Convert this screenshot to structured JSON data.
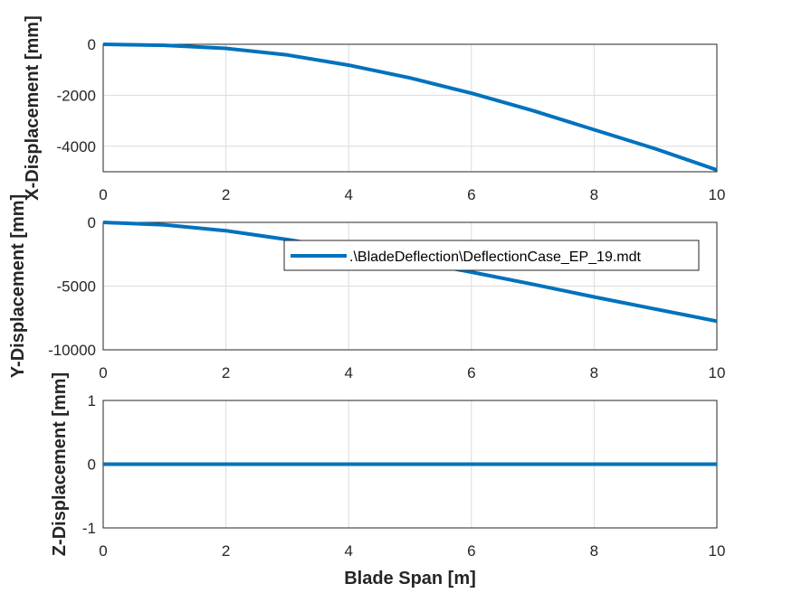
{
  "colors": {
    "series": "#0072BD",
    "grid": "#dcdcdc",
    "axis": "#262626",
    "background": "#ffffff"
  },
  "legend": {
    "label": ".\\BladeDeflection\\DeflectionCase_EP_19.mdt",
    "placement": "inside-top-right of middle axes"
  },
  "chart_data": [
    {
      "type": "line",
      "panel": "x-displacement",
      "ylabel": "X-Displacement [mm]",
      "xlabel": "",
      "xlim": [
        0,
        10
      ],
      "ylim": [
        -5000,
        0
      ],
      "x_ticks": [
        "0",
        "2",
        "4",
        "6",
        "8",
        "10"
      ],
      "y_ticks": [
        "0",
        "-2000",
        "-4000"
      ],
      "y_tick_values": [
        0,
        -2000,
        -4000
      ],
      "grid": true,
      "series": [
        {
          "name": ".\\BladeDeflection\\DeflectionCase_EP_19.mdt",
          "x": [
            0,
            1,
            2,
            3,
            4,
            5,
            6,
            7,
            8,
            9,
            10
          ],
          "y": [
            0,
            -40,
            -160,
            -420,
            -820,
            -1320,
            -1920,
            -2600,
            -3350,
            -4100,
            -4930
          ]
        }
      ]
    },
    {
      "type": "line",
      "panel": "y-displacement",
      "ylabel": "Y-Displacement [mm]",
      "xlabel": "",
      "xlim": [
        0,
        10
      ],
      "ylim": [
        -10000,
        0
      ],
      "x_ticks": [
        "0",
        "2",
        "4",
        "6",
        "8",
        "10"
      ],
      "y_ticks": [
        "0",
        "-5000",
        "-10000"
      ],
      "y_tick_values": [
        0,
        -5000,
        -10000
      ],
      "grid": true,
      "series": [
        {
          "name": ".\\BladeDeflection\\DeflectionCase_EP_19.mdt",
          "x": [
            0,
            1,
            2,
            3,
            4,
            5,
            6,
            7,
            8,
            9,
            10
          ],
          "y": [
            0,
            -200,
            -650,
            -1350,
            -2150,
            -3000,
            -3900,
            -4850,
            -5850,
            -6800,
            -7750
          ]
        }
      ]
    },
    {
      "type": "line",
      "panel": "z-displacement",
      "ylabel": "Z-Displacement [mm]",
      "xlabel": "Blade Span [m]",
      "xlim": [
        0,
        10
      ],
      "ylim": [
        -1,
        1
      ],
      "x_ticks": [
        "0",
        "2",
        "4",
        "6",
        "8",
        "10"
      ],
      "y_ticks": [
        "1",
        "0",
        "-1"
      ],
      "y_tick_values": [
        1,
        0,
        -1
      ],
      "grid": true,
      "series": [
        {
          "name": ".\\BladeDeflection\\DeflectionCase_EP_19.mdt",
          "x": [
            0,
            1,
            2,
            3,
            4,
            5,
            6,
            7,
            8,
            9,
            10
          ],
          "y": [
            0,
            0,
            0,
            0,
            0,
            0,
            0,
            0,
            0,
            0,
            0
          ]
        }
      ]
    }
  ]
}
